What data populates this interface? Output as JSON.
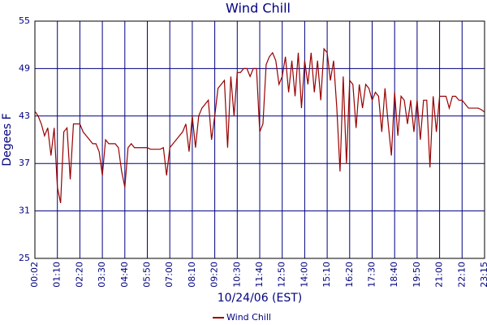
{
  "chart_data": {
    "type": "line",
    "title": "Wind Chill",
    "x_label": "10/24/06 (EST)",
    "y_label": "Degees F",
    "categories": [
      "00:02",
      null,
      null,
      null,
      null,
      null,
      null,
      "01:10",
      null,
      null,
      null,
      null,
      null,
      null,
      "02:20",
      null,
      null,
      null,
      null,
      null,
      null,
      "03:30",
      null,
      null,
      null,
      null,
      null,
      null,
      "04:40",
      null,
      null,
      null,
      null,
      null,
      null,
      "05:50",
      null,
      null,
      null,
      null,
      null,
      null,
      "07:00",
      null,
      null,
      null,
      null,
      null,
      null,
      "08:10",
      null,
      null,
      null,
      null,
      null,
      null,
      "09:20",
      null,
      null,
      null,
      null,
      null,
      null,
      "10:30",
      null,
      null,
      null,
      null,
      null,
      null,
      "11:40",
      null,
      null,
      null,
      null,
      null,
      null,
      "12:50",
      null,
      null,
      null,
      null,
      null,
      null,
      "14:00",
      null,
      null,
      null,
      null,
      null,
      null,
      "15:10",
      null,
      null,
      null,
      null,
      null,
      null,
      "16:20",
      null,
      null,
      null,
      null,
      null,
      null,
      "17:30",
      null,
      null,
      null,
      null,
      null,
      null,
      "18:40",
      null,
      null,
      null,
      null,
      null,
      null,
      "19:50",
      null,
      null,
      null,
      null,
      null,
      null,
      "21:00",
      null,
      null,
      null,
      null,
      null,
      null,
      "22:10",
      null,
      null,
      null,
      null,
      null,
      null,
      "23:15"
    ],
    "series": [
      {
        "name": "Wind Chill",
        "color": "#990000",
        "values": [
          43.6,
          43,
          42,
          40.5,
          41.5,
          38,
          41.5,
          34,
          32,
          41,
          41.5,
          35,
          42,
          42,
          42,
          41,
          40.5,
          40,
          39.5,
          39.5,
          38.5,
          35.5,
          40,
          39.5,
          39.5,
          39.5,
          39,
          36,
          34,
          39,
          39.5,
          39,
          39,
          39,
          39,
          39,
          38.8,
          38.8,
          38.8,
          38.8,
          39,
          35.5,
          39,
          39.5,
          40,
          40.5,
          41,
          42,
          38.5,
          43,
          39,
          43,
          44,
          44.5,
          45,
          40,
          43,
          46.5,
          47,
          47.5,
          39,
          48,
          43,
          48.5,
          48.5,
          49,
          49,
          48,
          49,
          49,
          41,
          42,
          49.5,
          50.5,
          51,
          50,
          47,
          48,
          50.5,
          46,
          50,
          45.5,
          51,
          44,
          50,
          47,
          51,
          46,
          50,
          45,
          51.5,
          51,
          47.5,
          50,
          44,
          36,
          48,
          37,
          47.5,
          47,
          41.5,
          47,
          44,
          47,
          46.5,
          45,
          46,
          45.5,
          41,
          46.5,
          42,
          38,
          46,
          40.5,
          45.5,
          45,
          42,
          45,
          41,
          45,
          40,
          45,
          45,
          36.5,
          45.5,
          41,
          45.5,
          45.5,
          45.5,
          44,
          45.5,
          45.5,
          45,
          45,
          44.5,
          44,
          44,
          44,
          44,
          43.8,
          43.5
        ]
      }
    ],
    "ylim": [
      25,
      55
    ],
    "yticks": [
      25,
      31,
      37,
      43,
      49,
      55
    ],
    "grid": true
  }
}
